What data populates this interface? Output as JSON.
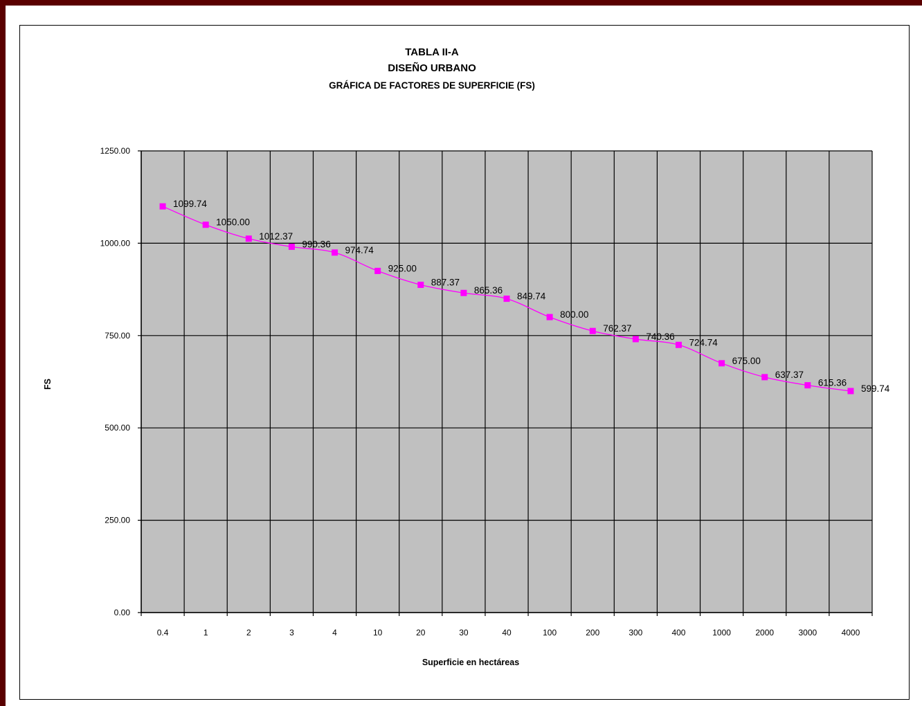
{
  "chart_data": {
    "type": "line",
    "title": "TABLA II-A",
    "subtitle": "DISEÑO URBANO",
    "subtitle2": "GRÁFICA DE FACTORES DE SUPERFICIE (FS)",
    "xlabel": "Superficie en hectáreas",
    "ylabel": "FS",
    "categories": [
      "0.4",
      "1",
      "2",
      "3",
      "4",
      "10",
      "20",
      "30",
      "40",
      "100",
      "200",
      "300",
      "400",
      "1000",
      "2000",
      "3000",
      "4000"
    ],
    "series": [
      {
        "values": [
          1099.74,
          1050.0,
          1012.37,
          990.36,
          974.74,
          925.0,
          887.37,
          865.36,
          849.74,
          800.0,
          762.37,
          740.36,
          724.74,
          675.0,
          637.37,
          615.36,
          599.74
        ],
        "labels": [
          "1099.74",
          "1050.00",
          "1012.37",
          "990.36",
          "974.74",
          "925.00",
          "887.37",
          "865.36",
          "849.74",
          "800.00",
          "762.37",
          "740.36",
          "724.74",
          "675.00",
          "637.37",
          "615.36",
          "599.74"
        ],
        "color": "#ff00ff",
        "marker": "square"
      }
    ],
    "ylim": [
      0,
      1250
    ],
    "yticks": [
      "0.00",
      "250.00",
      "500.00",
      "750.00",
      "1000.00",
      "1250.00"
    ],
    "ytick_values": [
      0,
      250,
      500,
      750,
      1000,
      1250
    ],
    "grid": true,
    "plot_background": "#c0c0c0",
    "gridline_color": "#000000",
    "legend": "none"
  }
}
